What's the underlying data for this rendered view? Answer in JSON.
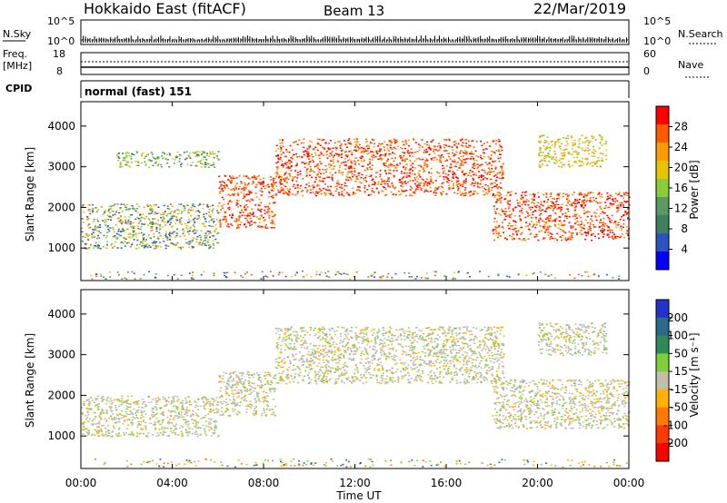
{
  "header": {
    "title": "Hokkaido East (fitACF)",
    "beam": "Beam 13",
    "date": "22/Mar/2019"
  },
  "top_strips": {
    "nsky_label": "N.Sky",
    "nsky_ticks": [
      "10^5",
      "10^0"
    ],
    "nsearch_label": "N.Search",
    "nsearch_ticks": [
      "10^5",
      "10^0"
    ],
    "freq_label": "Freq.",
    "freq_unit": "[MHz]",
    "freq_ticks": [
      "18",
      "8"
    ],
    "nave_label": "Nave",
    "nave_ticks": [
      "60",
      "0"
    ],
    "cpid_label": "CPID",
    "cpid_value": "normal (fast) 151"
  },
  "colors": {
    "power_scale": [
      "#0000ff",
      "#2a52c0",
      "#3f7f5f",
      "#5a9a60",
      "#8ccc3a",
      "#e6c400",
      "#ff9a00",
      "#ff5a00",
      "#ff0000"
    ],
    "velocity_scale": [
      "#2233cc",
      "#2a6a8a",
      "#2e8b57",
      "#7fcf3a",
      "#bfbfaa",
      "#ffb300",
      "#ff7a00",
      "#ff3a00",
      "#ff0000"
    ],
    "ground_scatter": "#b9b9b0"
  },
  "chart_data": [
    {
      "type": "heatmap",
      "panel": "power",
      "xlabel": "",
      "ylabel": "Slant Range [km]",
      "x_range_hours": [
        0,
        24
      ],
      "ylim": [
        200,
        4600
      ],
      "yticks": [
        "1000",
        "2000",
        "3000",
        "4000"
      ],
      "colorbar_label": "Power [dB]",
      "colorbar_ticks": [
        "4",
        "8",
        "12",
        "16",
        "20",
        "24",
        "28"
      ],
      "echo_bands": [
        {
          "t0": 0.0,
          "t1": 6.0,
          "r0": 1000,
          "r1": 2100,
          "level": "mixed low"
        },
        {
          "t0": 6.0,
          "t1": 8.5,
          "r0": 1500,
          "r1": 2800,
          "level": "high"
        },
        {
          "t0": 8.5,
          "t1": 18.5,
          "r0": 2300,
          "r1": 3700,
          "level": "high"
        },
        {
          "t0": 18.0,
          "t1": 24.0,
          "r0": 1200,
          "r1": 2400,
          "level": "high"
        },
        {
          "t0": 20.0,
          "t1": 23.0,
          "r0": 3000,
          "r1": 3800,
          "level": "mid"
        },
        {
          "t0": 1.5,
          "t1": 6.0,
          "r0": 3000,
          "r1": 3400,
          "level": "mixed"
        }
      ]
    },
    {
      "type": "heatmap",
      "panel": "velocity",
      "xlabel": "Time UT",
      "ylabel": "Slant Range [km]",
      "x_range_hours": [
        0,
        24
      ],
      "xticks": [
        "00:00",
        "04:00",
        "08:00",
        "12:00",
        "16:00",
        "20:00",
        "00:00"
      ],
      "ylim": [
        200,
        4600
      ],
      "yticks": [
        "1000",
        "2000",
        "3000",
        "4000"
      ],
      "colorbar_label": "Velocity [m s⁻¹]",
      "colorbar_ticks": [
        "200",
        "100",
        "50",
        "15",
        "-15",
        "-50",
        "-100",
        "-200"
      ],
      "echo_bands": [
        {
          "t0": 0.0,
          "t1": 6.0,
          "r0": 1000,
          "r1": 2000,
          "level": "ground"
        },
        {
          "t0": 6.0,
          "t1": 8.5,
          "r0": 1500,
          "r1": 2600,
          "level": "ground"
        },
        {
          "t0": 8.5,
          "t1": 18.5,
          "r0": 2300,
          "r1": 3700,
          "level": "ground"
        },
        {
          "t0": 18.0,
          "t1": 24.0,
          "r0": 1200,
          "r1": 2400,
          "level": "ground"
        },
        {
          "t0": 20.0,
          "t1": 23.0,
          "r0": 3000,
          "r1": 3800,
          "level": "ground"
        }
      ]
    }
  ]
}
